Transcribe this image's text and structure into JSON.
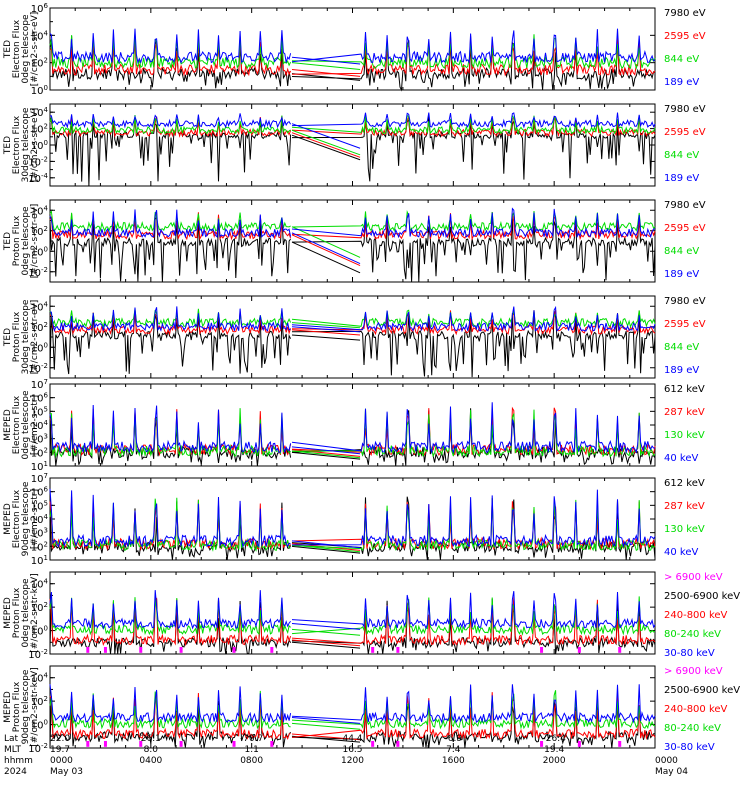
{
  "colors": {
    "black": "#000000",
    "red": "#ff0000",
    "green": "#00dd00",
    "blue": "#0000ff",
    "magenta": "#ff00ff",
    "frame": "#000000"
  },
  "chart_data": [
    {
      "type": "line",
      "instrument": "TED",
      "ylabel": [
        "TED",
        "Electron Flux",
        "0deg telescope",
        "[#/cm2-s-str-eV]"
      ],
      "ylim_exp": [
        0,
        6
      ],
      "ticks": [
        "10^0",
        "10^2",
        "10^4",
        "10^6"
      ],
      "legend": [
        {
          "text": "7980 eV",
          "color": "black"
        },
        {
          "text": "2595 eV",
          "color": "red"
        },
        {
          "text": "844 eV",
          "color": "green"
        },
        {
          "text": "189 eV",
          "color": "blue"
        }
      ],
      "baseline_exp": {
        "blue": 2.4,
        "green": 2.0,
        "red": 1.5,
        "black": 1.2
      },
      "spikes_exp": 4.5,
      "gap": true
    },
    {
      "type": "line",
      "instrument": "TED",
      "ylabel": [
        "TED",
        "Electron Flux",
        "30deg telescope",
        "[#/cm2-s-str-eV]"
      ],
      "ylim_exp": [
        -5,
        5
      ],
      "ticks": [
        "10^-4",
        "10^-2",
        "10^0",
        "10^2",
        "10^4"
      ],
      "legend": [
        {
          "text": "7980 eV",
          "color": "black"
        },
        {
          "text": "2595 eV",
          "color": "red"
        },
        {
          "text": "844 eV",
          "color": "green"
        },
        {
          "text": "189 eV",
          "color": "blue"
        }
      ],
      "baseline_exp": {
        "blue": 2.6,
        "green": 1.8,
        "red": 1.5,
        "black": 1.2
      },
      "spikes_exp": 4.0,
      "gap": true
    },
    {
      "type": "line",
      "instrument": "TED",
      "ylabel": [
        "TED",
        "Proton Flux",
        "0deg telescope",
        "[#/cm2-s-str-eV]"
      ],
      "ylim_exp": [
        -3,
        5
      ],
      "ticks": [
        "10^-2",
        "10^0",
        "10^2",
        "10^4"
      ],
      "legend": [
        {
          "text": "7980 eV",
          "color": "black"
        },
        {
          "text": "2595 eV",
          "color": "red"
        },
        {
          "text": "844 eV",
          "color": "green"
        },
        {
          "text": "189 eV",
          "color": "blue"
        }
      ],
      "baseline_exp": {
        "blue": 1.8,
        "green": 2.4,
        "red": 1.6,
        "black": 0.9
      },
      "spikes_exp": 4.2,
      "gap": true
    },
    {
      "type": "line",
      "instrument": "TED",
      "ylabel": [
        "TED",
        "Proton Flux",
        "30deg telescope",
        "[#/cm2-s-str-eV]"
      ],
      "ylim_exp": [
        -3,
        5
      ],
      "ticks": [
        "10^-2",
        "10^0",
        "10^2",
        "10^4"
      ],
      "legend": [
        {
          "text": "7980 eV",
          "color": "black"
        },
        {
          "text": "2595 eV",
          "color": "red"
        },
        {
          "text": "844 eV",
          "color": "green"
        },
        {
          "text": "189 eV",
          "color": "blue"
        }
      ],
      "baseline_exp": {
        "blue": 2.0,
        "green": 2.4,
        "red": 1.7,
        "black": 1.2
      },
      "spikes_exp": 4.0,
      "gap": true
    },
    {
      "type": "line",
      "instrument": "MEPED",
      "ylabel": [
        "MEPED",
        "Electron Flux",
        "0deg telescope",
        "[#/cm2-s-str]"
      ],
      "ylim_exp": [
        1,
        7
      ],
      "ticks": [
        "10^1",
        "10^2",
        "10^3",
        "10^4",
        "10^5",
        "10^6",
        "10^7"
      ],
      "legend": [
        {
          "text": "612 keV",
          "color": "black"
        },
        {
          "text": "287 keV",
          "color": "red"
        },
        {
          "text": "130 keV",
          "color": "green"
        },
        {
          "text": "40 keV",
          "color": "blue"
        }
      ],
      "baseline_exp": {
        "blue": 2.4,
        "green": 2.1,
        "red": 2.2,
        "black": 2.0
      },
      "spikes_exp": 5.8,
      "gap": true
    },
    {
      "type": "line",
      "instrument": "MEPED",
      "ylabel": [
        "MEPED",
        "Electron Flux",
        "90deg telescope",
        "[#/cm2-s-str]"
      ],
      "ylim_exp": [
        1,
        7
      ],
      "ticks": [
        "10^1",
        "10^2",
        "10^3",
        "10^4",
        "10^5",
        "10^6",
        "10^7"
      ],
      "legend": [
        {
          "text": "612 keV",
          "color": "black"
        },
        {
          "text": "287 keV",
          "color": "red"
        },
        {
          "text": "130 keV",
          "color": "green"
        },
        {
          "text": "40 keV",
          "color": "blue"
        }
      ],
      "baseline_exp": {
        "blue": 2.4,
        "green": 2.1,
        "red": 2.2,
        "black": 2.0
      },
      "spikes_exp": 6.3,
      "gap": true
    },
    {
      "type": "line",
      "instrument": "MEPED",
      "ylabel": [
        "MEPED",
        "Proton Flux",
        "0deg telescope",
        "[#/cm2-s-str-keV]"
      ],
      "ylim_exp": [
        -2,
        5
      ],
      "ticks": [
        "10^-2",
        "10^0",
        "10^2",
        "10^4"
      ],
      "legend": [
        {
          "text": "> 6900 keV",
          "color": "magenta"
        },
        {
          "text": "2500-6900 keV",
          "color": "black"
        },
        {
          "text": "240-800 keV",
          "color": "red"
        },
        {
          "text": "80-240 keV",
          "color": "green"
        },
        {
          "text": "30-80 keV",
          "color": "blue"
        }
      ],
      "baseline_exp": {
        "blue": 0.6,
        "green": 0.1,
        "red": -0.8,
        "black": -1.0
      },
      "spikes_exp": 3.5,
      "gap": true
    },
    {
      "type": "line",
      "instrument": "MEPED",
      "ylabel": [
        "MEPED",
        "Proton Flux",
        "90deg telescope",
        "[#/cm2-s-str-keV]"
      ],
      "ylim_exp": [
        -2,
        5
      ],
      "ticks": [
        "10^-2",
        "10^0",
        "10^2",
        "10^4"
      ],
      "legend": [
        {
          "text": "> 6900 keV",
          "color": "magenta"
        },
        {
          "text": "2500-6900 keV",
          "color": "black"
        },
        {
          "text": "240-800 keV",
          "color": "red"
        },
        {
          "text": "80-240 keV",
          "color": "green"
        },
        {
          "text": "30-80 keV",
          "color": "blue"
        }
      ],
      "baseline_exp": {
        "blue": 0.6,
        "green": 0.1,
        "red": -0.8,
        "black": -1.0
      },
      "spikes_exp": 3.5,
      "gap": true
    }
  ],
  "x_axis": {
    "row_labels": [
      "Lat",
      "MLT",
      "hhmm",
      "2024"
    ],
    "columns": [
      {
        "lat": "22.0",
        "mlt": "19.7",
        "hhmm": "0000",
        "date": "May 03"
      },
      {
        "lat": "26.1",
        "mlt": "8.0",
        "hhmm": "0400",
        "date": ""
      },
      {
        "lat": "-70.7",
        "mlt": "1.1",
        "hhmm": "0800",
        "date": ""
      },
      {
        "lat": "44.4",
        "mlt": "16.5",
        "hhmm": "1200",
        "date": ""
      },
      {
        "lat": "-6.9",
        "mlt": "7.4",
        "hhmm": "1600",
        "date": ""
      },
      {
        "lat": "-26.4",
        "mlt": "19.4",
        "hhmm": "2000",
        "date": ""
      },
      {
        "lat": "",
        "mlt": "",
        "hhmm": "0000",
        "date": "May 04"
      }
    ],
    "range_hours": [
      0,
      24
    ],
    "data_gap_hours": [
      9.6,
      12.3
    ]
  }
}
